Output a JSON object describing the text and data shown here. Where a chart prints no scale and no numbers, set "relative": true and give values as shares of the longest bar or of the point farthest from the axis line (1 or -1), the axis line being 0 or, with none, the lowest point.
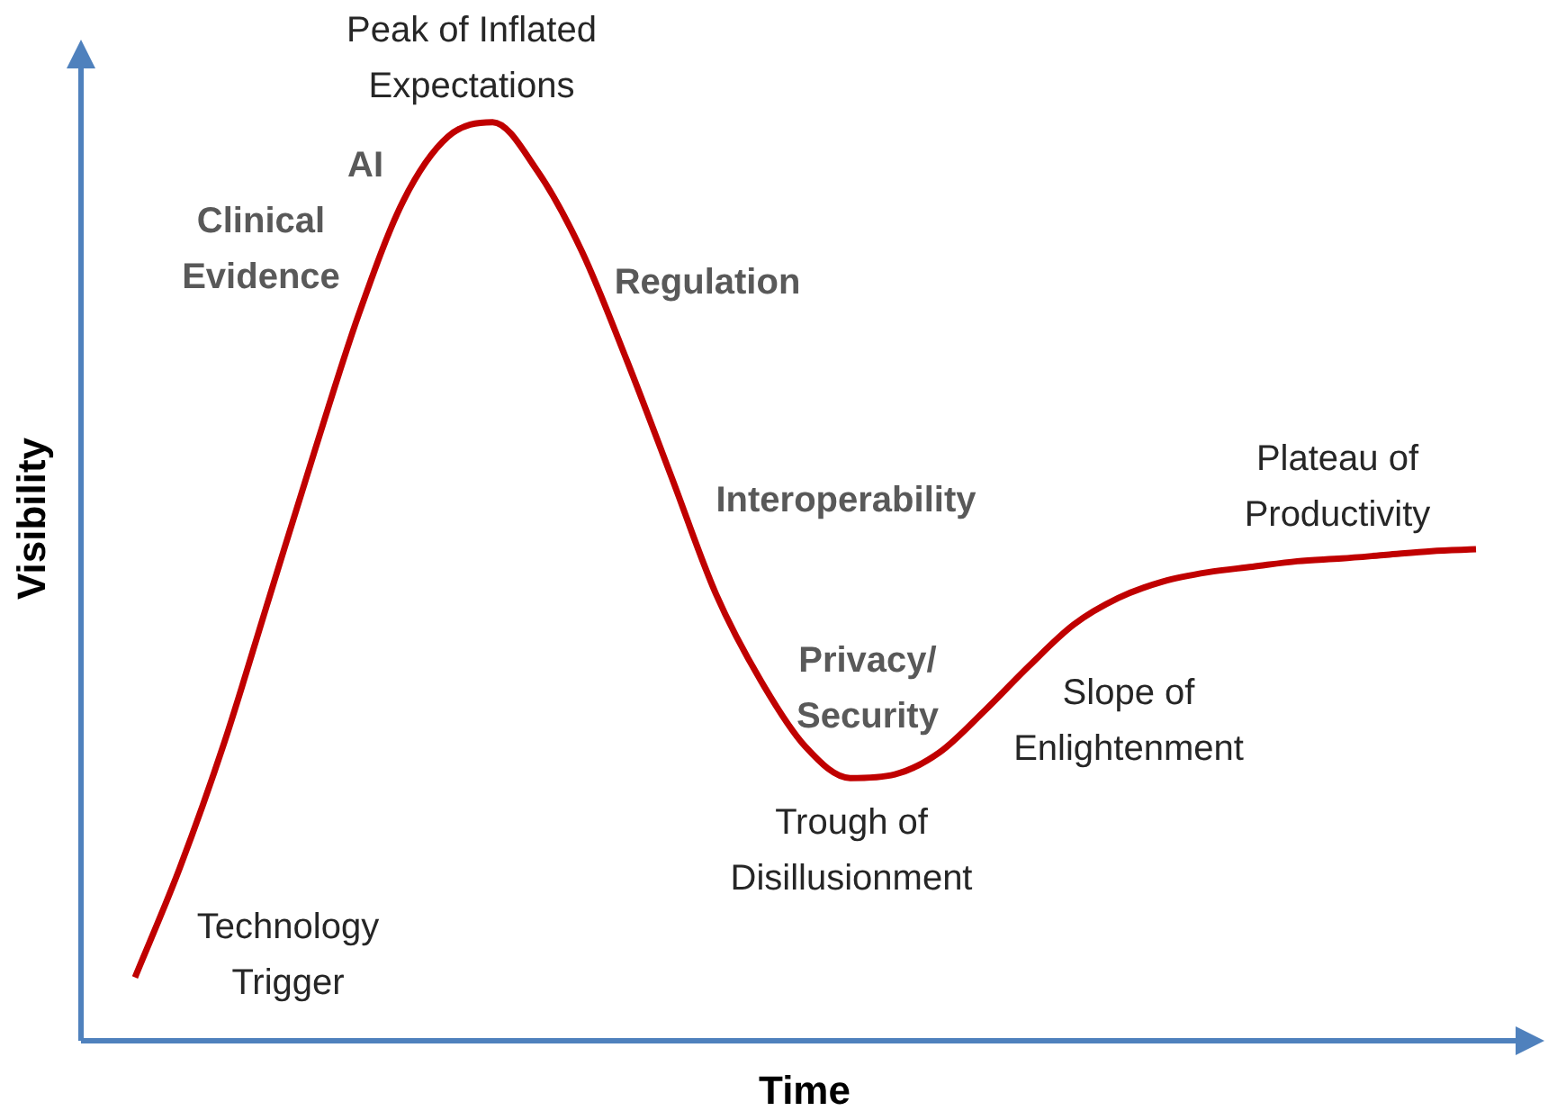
{
  "chart_data": {
    "type": "line",
    "relative": true,
    "xlabel": "Time",
    "ylabel": "Visibility",
    "categories": [
      null,
      null,
      null,
      null,
      null,
      null,
      null,
      null,
      null,
      null,
      null,
      null,
      null,
      null,
      null,
      null,
      null,
      null,
      null,
      null,
      null,
      null,
      null,
      null,
      null,
      null,
      null,
      null,
      null,
      null,
      null
    ],
    "series": [
      {
        "color": "#c00000",
        "values": [
          0.069,
          0.188,
          0.325,
          0.482,
          0.639,
          0.79,
          0.914,
          0.984,
          1,
          0.947,
          0.859,
          0.741,
          0.614,
          0.486,
          0.392,
          0.32,
          0.286,
          0.29,
          0.314,
          0.359,
          0.408,
          0.453,
          0.482,
          0.5,
          0.51,
          0.516,
          0.522,
          0.525,
          0.529,
          0.533,
          0.535
        ]
      }
    ],
    "marker": "none",
    "legend": false,
    "annotations": [
      "Technology Trigger",
      "Clinical Evidence",
      "AI",
      "Peak of Inflated Expectations",
      "Regulation",
      "Interoperability",
      "Privacy/ Security",
      "Trough of Disillusionment",
      "Slope of Enlightenment",
      "Plateau of Productivity"
    ]
  }
}
